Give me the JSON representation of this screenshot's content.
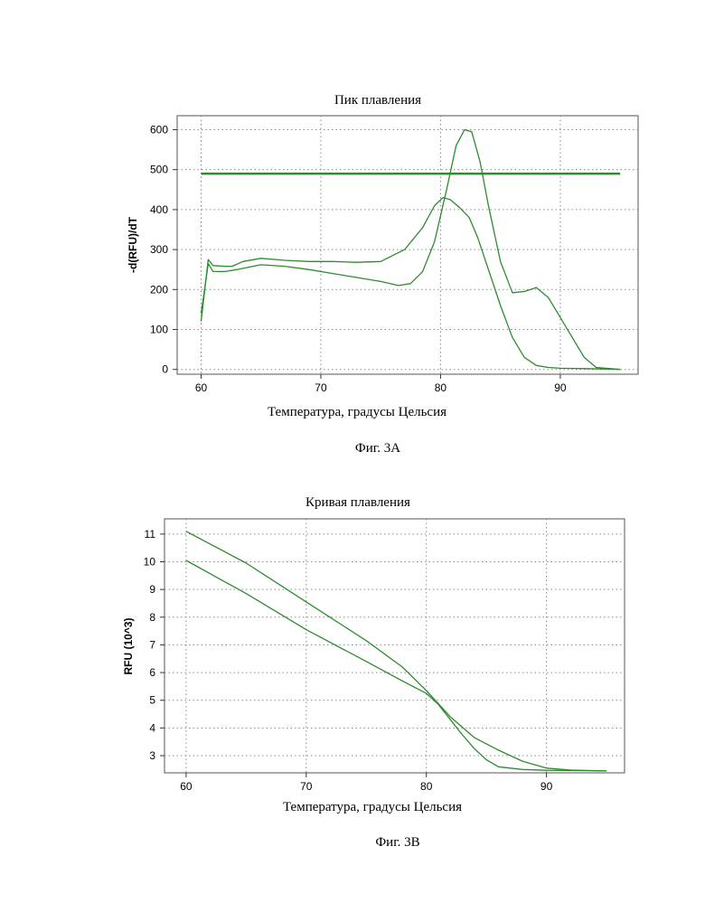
{
  "chart_data": [
    {
      "type": "line",
      "title": "Пик плавления",
      "caption": "Фиг. 3А",
      "xlabel": "Температура, градусы Цельсия",
      "ylabel": "-d(RFU)/dT",
      "xlim": [
        58,
        96.5
      ],
      "ylim": [
        -12,
        635
      ],
      "xticks": [
        60,
        70,
        80,
        90
      ],
      "yticks": [
        0,
        100,
        200,
        300,
        400,
        500,
        600
      ],
      "grid": true,
      "line_color": "#2e8b2e",
      "series": [
        {
          "x": [
            60,
            60.6,
            61,
            62,
            62.6,
            63.5,
            65,
            67,
            69,
            71,
            73,
            75,
            77,
            78.5,
            79.5,
            80.2,
            80.8,
            81.6,
            82.4,
            83.1,
            84,
            85,
            86,
            87,
            88,
            89,
            90,
            92,
            94,
            95
          ],
          "y": [
            120,
            275,
            260,
            258,
            258,
            270,
            278,
            273,
            270,
            270,
            268,
            270,
            300,
            355,
            410,
            430,
            425,
            405,
            380,
            330,
            250,
            160,
            80,
            30,
            10,
            5,
            3,
            2,
            1,
            0
          ]
        },
        {
          "x": [
            60,
            60.6,
            61,
            62,
            63,
            65,
            67,
            69,
            71,
            73,
            75,
            76.5,
            77.5,
            78.5,
            79.5,
            80.5,
            81.3,
            82,
            82.6,
            83.3,
            84,
            85,
            86,
            87,
            88,
            89,
            90,
            91,
            92,
            93,
            95
          ],
          "y": [
            140,
            265,
            245,
            245,
            250,
            262,
            258,
            250,
            240,
            230,
            220,
            210,
            215,
            245,
            320,
            450,
            560,
            600,
            595,
            520,
            410,
            270,
            192,
            195,
            205,
            180,
            130,
            80,
            30,
            5,
            0
          ]
        },
        {
          "x": [
            60,
            95
          ],
          "y": [
            490,
            490
          ],
          "style": "thick"
        }
      ]
    },
    {
      "type": "line",
      "title": "Кривая плавления",
      "caption": "Фиг. 3В",
      "xlabel": "Температура, градусы Цельсия",
      "ylabel": "RFU (10^3)",
      "xlim": [
        58.2,
        96.5
      ],
      "ylim": [
        2.38,
        11.55
      ],
      "xticks": [
        60,
        70,
        80,
        90
      ],
      "yticks": [
        3,
        4,
        5,
        6,
        7,
        8,
        9,
        10,
        11
      ],
      "grid": true,
      "line_color": "#2e8b2e",
      "series": [
        {
          "x": [
            60,
            65,
            70,
            75,
            78,
            80,
            82,
            84,
            86,
            88,
            90,
            92,
            95
          ],
          "y": [
            11.1,
            9.95,
            8.55,
            7.15,
            6.2,
            5.35,
            4.4,
            3.65,
            3.2,
            2.8,
            2.55,
            2.48,
            2.45
          ]
        },
        {
          "x": [
            60,
            65,
            70,
            75,
            78,
            80,
            81,
            82,
            83,
            84,
            85,
            86,
            88,
            90,
            95
          ],
          "y": [
            10.05,
            8.85,
            7.55,
            6.4,
            5.7,
            5.25,
            4.85,
            4.3,
            3.75,
            3.25,
            2.85,
            2.6,
            2.5,
            2.47,
            2.45
          ]
        }
      ]
    }
  ]
}
